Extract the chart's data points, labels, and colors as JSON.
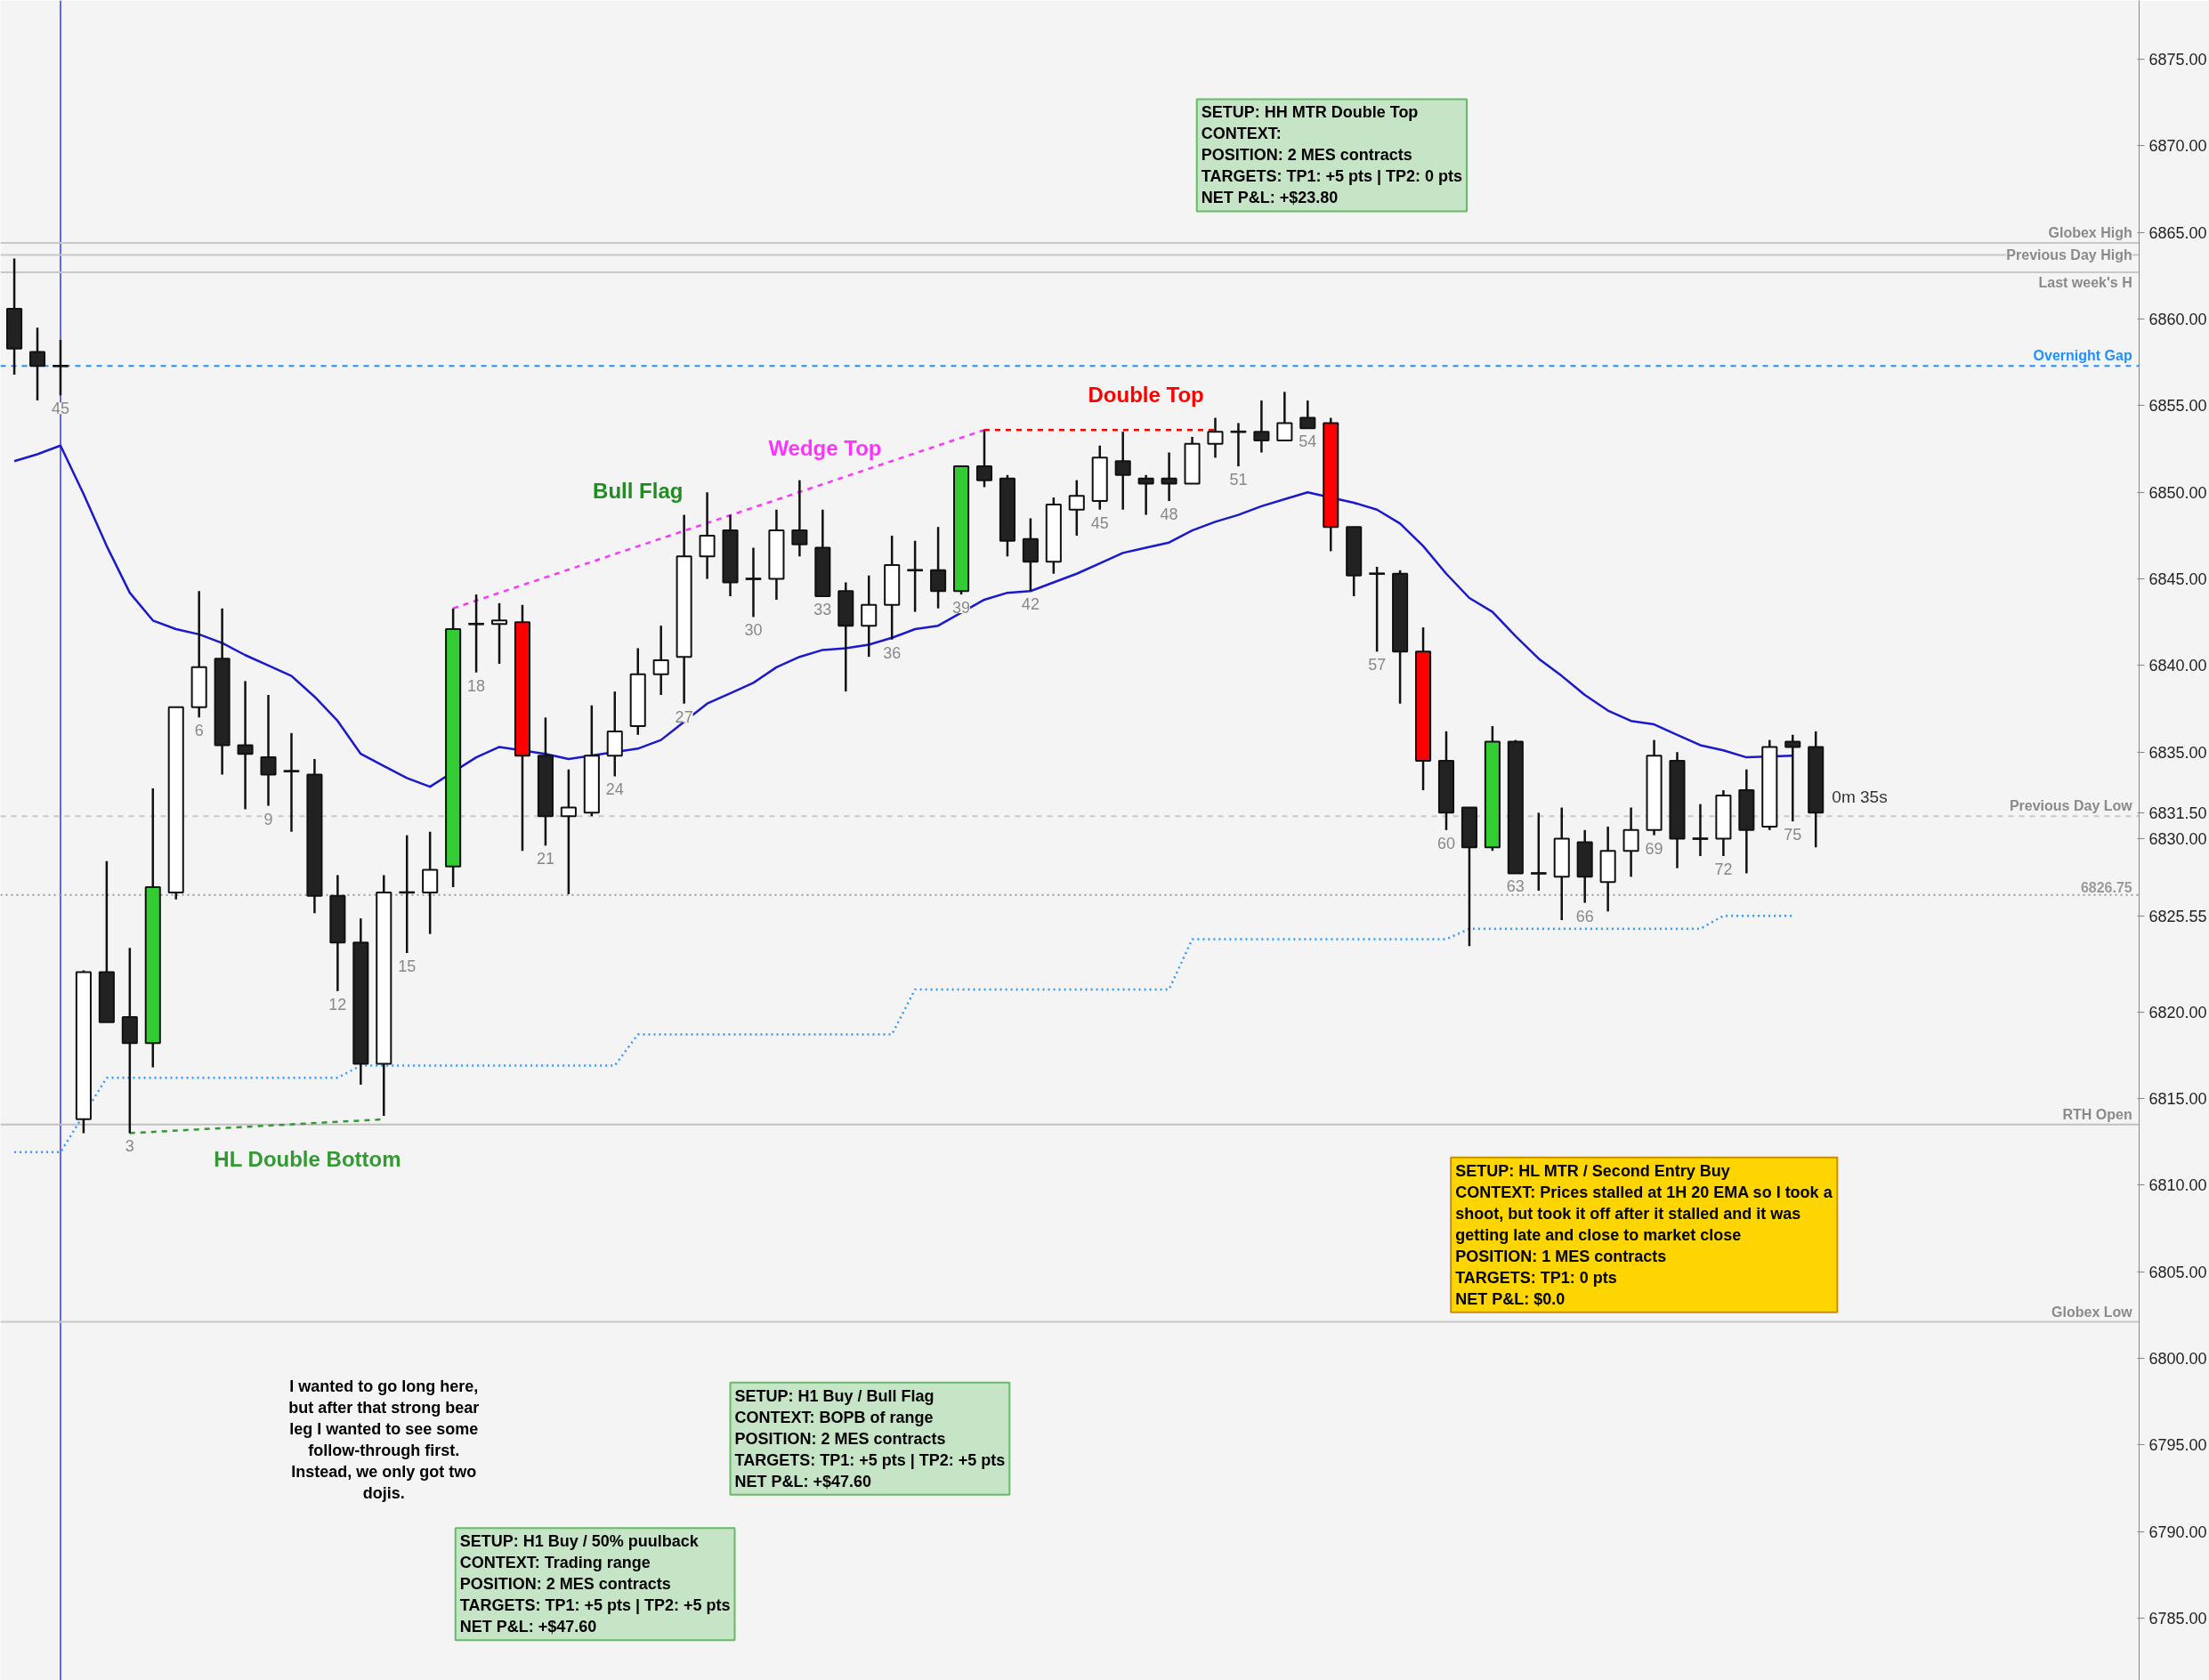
{
  "chart_data": {
    "type": "candlestick",
    "categories": [
      null,
      null,
      "45",
      null,
      null,
      "3",
      null,
      null,
      "6",
      null,
      null,
      "9",
      null,
      null,
      "12",
      null,
      null,
      "15",
      null,
      null,
      "18",
      null,
      null,
      "21",
      null,
      null,
      "24",
      null,
      null,
      "27",
      null,
      null,
      "30",
      null,
      null,
      "33",
      null,
      null,
      "36",
      null,
      null,
      "39",
      null,
      null,
      "42",
      null,
      null,
      "45",
      null,
      null,
      "48",
      null,
      null,
      "51",
      null,
      null,
      "54",
      null,
      null,
      "57",
      null,
      null,
      "60",
      null,
      null,
      "63",
      null,
      null,
      "66",
      null,
      null,
      "69",
      null,
      null,
      "72",
      null,
      null,
      "75",
      null
    ],
    "ohlc": [
      [
        6860.6,
        6863.5,
        6856.8,
        6858.3
      ],
      [
        6858.1,
        6859.5,
        6855.3,
        6857.3
      ],
      [
        6857.3,
        6858.8,
        6855.6,
        6857.3
      ],
      [
        6813.8,
        6822.4,
        6813.0,
        6822.3
      ],
      [
        6822.3,
        6828.7,
        6819.4,
        6819.4
      ],
      [
        6819.7,
        6823.7,
        6813.0,
        6818.2
      ],
      [
        6818.2,
        6832.9,
        6816.8,
        6827.2
      ],
      [
        6826.9,
        6837.6,
        6826.5,
        6837.6
      ],
      [
        6837.6,
        6844.3,
        6837.0,
        6839.9
      ],
      [
        6840.4,
        6843.3,
        6833.7,
        6835.4
      ],
      [
        6835.4,
        6839.1,
        6831.7,
        6834.9
      ],
      [
        6834.7,
        6838.3,
        6831.9,
        6833.7
      ],
      [
        6833.9,
        6836.1,
        6830.4,
        6833.9
      ],
      [
        6833.7,
        6834.6,
        6825.7,
        6826.7
      ],
      [
        6826.7,
        6827.9,
        6821.2,
        6824.0
      ],
      [
        6824.0,
        6825.4,
        6815.8,
        6817.0
      ],
      [
        6817.0,
        6827.9,
        6814.0,
        6826.9
      ],
      [
        6826.9,
        6830.2,
        6823.4,
        6826.9
      ],
      [
        6826.9,
        6830.4,
        6824.5,
        6828.2
      ],
      [
        6828.4,
        6843.3,
        6827.2,
        6842.1
      ],
      [
        6842.4,
        6844.1,
        6839.6,
        6842.4
      ],
      [
        6842.4,
        6843.6,
        6840.1,
        6842.6
      ],
      [
        6842.5,
        6843.5,
        6829.3,
        6834.8
      ],
      [
        6834.8,
        6837.0,
        6829.6,
        6831.3
      ],
      [
        6831.3,
        6834.0,
        6826.8,
        6831.8
      ],
      [
        6831.5,
        6837.7,
        6831.3,
        6834.8
      ],
      [
        6834.8,
        6838.5,
        6833.6,
        6836.2
      ],
      [
        6836.5,
        6841.0,
        6836.0,
        6839.5
      ],
      [
        6839.5,
        6842.3,
        6838.3,
        6840.3
      ],
      [
        6840.5,
        6848.7,
        6837.8,
        6846.3
      ],
      [
        6846.3,
        6850.0,
        6845.0,
        6847.5
      ],
      [
        6847.8,
        6848.7,
        6844.0,
        6844.8
      ],
      [
        6845.0,
        6846.8,
        6842.8,
        6845.0
      ],
      [
        6845.0,
        6849.0,
        6843.8,
        6847.8
      ],
      [
        6847.8,
        6850.7,
        6846.3,
        6847.0
      ],
      [
        6846.8,
        6849.0,
        6844.0,
        6844.0
      ],
      [
        6844.3,
        6844.8,
        6838.5,
        6842.3
      ],
      [
        6842.3,
        6845.2,
        6840.5,
        6843.5
      ],
      [
        6843.5,
        6847.5,
        6841.5,
        6845.8
      ],
      [
        6845.5,
        6847.2,
        6843.1,
        6845.5
      ],
      [
        6845.5,
        6848.0,
        6843.3,
        6844.3
      ],
      [
        6844.3,
        6851.5,
        6844.1,
        6851.5
      ],
      [
        6851.5,
        6853.6,
        6850.3,
        6850.7
      ],
      [
        6850.8,
        6851.0,
        6846.3,
        6847.2
      ],
      [
        6847.3,
        6848.5,
        6844.3,
        6846.0
      ],
      [
        6846.0,
        6849.7,
        6845.3,
        6849.3
      ],
      [
        6849.0,
        6850.7,
        6847.5,
        6849.8
      ],
      [
        6849.5,
        6852.7,
        6849.0,
        6852.0
      ],
      [
        6851.8,
        6853.5,
        6849.0,
        6851.0
      ],
      [
        6850.8,
        6851.0,
        6848.7,
        6850.5
      ],
      [
        6850.8,
        6852.3,
        6849.5,
        6850.5
      ],
      [
        6850.5,
        6853.2,
        6850.5,
        6852.8
      ],
      [
        6852.8,
        6854.3,
        6852.0,
        6853.5
      ],
      [
        6853.5,
        6854.0,
        6851.5,
        6853.5
      ],
      [
        6853.5,
        6855.3,
        6852.3,
        6853.0
      ],
      [
        6853.0,
        6855.8,
        6853.0,
        6854.0
      ],
      [
        6854.3,
        6855.3,
        6853.7,
        6853.7
      ],
      [
        6854.0,
        6854.3,
        6846.6,
        6848.0
      ],
      [
        6848.0,
        6848.0,
        6844.0,
        6845.2
      ],
      [
        6845.3,
        6845.7,
        6840.8,
        6845.3
      ],
      [
        6845.3,
        6845.5,
        6837.8,
        6840.8
      ],
      [
        6840.8,
        6842.2,
        6832.8,
        6834.5
      ],
      [
        6834.5,
        6836.2,
        6830.5,
        6831.5
      ],
      [
        6831.8,
        6831.8,
        6823.8,
        6829.5
      ],
      [
        6829.5,
        6836.5,
        6829.3,
        6835.6
      ],
      [
        6835.6,
        6835.7,
        6828.0,
        6828.0
      ],
      [
        6828.0,
        6831.5,
        6827.0,
        6828.0
      ],
      [
        6827.8,
        6831.8,
        6825.3,
        6830.0
      ],
      [
        6829.8,
        6830.5,
        6826.3,
        6827.8
      ],
      [
        6827.5,
        6830.7,
        6825.8,
        6829.3
      ],
      [
        6829.3,
        6831.8,
        6827.8,
        6830.5
      ],
      [
        6830.5,
        6835.7,
        6830.2,
        6834.8
      ],
      [
        6834.5,
        6835.0,
        6828.3,
        6830.0
      ],
      [
        6830.0,
        6832.0,
        6829.0,
        6830.0
      ],
      [
        6830.0,
        6832.8,
        6829.0,
        6832.5
      ],
      [
        6832.8,
        6834.0,
        6828.0,
        6830.5
      ],
      [
        6830.7,
        6835.7,
        6830.5,
        6835.3
      ],
      [
        6835.6,
        6836.0,
        6831.0,
        6835.3
      ],
      [
        6835.3,
        6836.2,
        6829.5,
        6831.5
      ]
    ],
    "colors": [
      "#222222",
      "#222222",
      "#111111",
      "#ffffff",
      "#222222",
      "#222222",
      "#33cc33",
      "#ffffff",
      "#ffffff",
      "#222222",
      "#222222",
      "#222222",
      "#111111",
      "#222222",
      "#222222",
      "#222222",
      "#ffffff",
      "#111111",
      "#ffffff",
      "#33cc33",
      "#111111",
      "#ffffff",
      "#ff0000",
      "#222222",
      "#ffffff",
      "#ffffff",
      "#ffffff",
      "#ffffff",
      "#ffffff",
      "#ffffff",
      "#ffffff",
      "#222222",
      "#111111",
      "#ffffff",
      "#222222",
      "#222222",
      "#222222",
      "#ffffff",
      "#ffffff",
      "#111111",
      "#222222",
      "#33cc33",
      "#222222",
      "#222222",
      "#222222",
      "#ffffff",
      "#ffffff",
      "#ffffff",
      "#222222",
      "#222222",
      "#222222",
      "#ffffff",
      "#ffffff",
      "#111111",
      "#222222",
      "#ffffff",
      "#222222",
      "#ff0000",
      "#222222",
      "#111111",
      "#222222",
      "#ff0000",
      "#222222",
      "#222222",
      "#33cc33",
      "#222222",
      "#111111",
      "#ffffff",
      "#222222",
      "#ffffff",
      "#ffffff",
      "#ffffff",
      "#222222",
      "#111111",
      "#ffffff",
      "#222222",
      "#ffffff",
      "#222222",
      "#222222"
    ],
    "series": [
      {
        "type": "line",
        "color": "#1a1acc",
        "line_style": "solid",
        "values": [
          6851.8,
          6852.2,
          6852.7,
          6849.9,
          6846.9,
          6844.2,
          6842.6,
          6842.1,
          6841.8,
          6841.3,
          6840.6,
          6840.0,
          6839.4,
          6838.2,
          6836.8,
          6834.9,
          6834.2,
          6833.5,
          6833.0,
          null,
          6834.7,
          6835.3,
          null,
          6834.9,
          6834.6,
          null,
          null,
          6835.2,
          6835.7,
          null,
          6837.8,
          6838.4,
          6839.0,
          6839.9,
          6840.5,
          6840.9,
          6841.0,
          6841.2,
          6841.6,
          6842.1,
          6842.3,
          null,
          6843.8,
          6844.2,
          6844.3,
          6844.8,
          6845.3,
          6845.9,
          6846.5,
          6846.8,
          6847.1,
          6847.8,
          6848.3,
          6848.7,
          6849.2,
          6849.6,
          6850.0,
          null,
          6849.4,
          6849.0,
          6848.2,
          6846.9,
          6845.3,
          6843.9,
          6843.1,
          6841.7,
          6840.4,
          6839.4,
          6838.3,
          6837.4,
          6836.8,
          6836.6,
          6836.0,
          6835.4,
          6835.1,
          6834.7,
          null,
          6834.8,
          null
        ]
      },
      {
        "type": "line",
        "color": "#3399ff",
        "line_style": "dotted",
        "values": [
          6811.9,
          6811.9,
          6811.9,
          null,
          6816.2,
          6816.2,
          6816.2,
          6816.2,
          6816.2,
          6816.2,
          6816.2,
          6816.2,
          6816.2,
          6816.2,
          6816.2,
          6816.9,
          6816.9,
          6816.9,
          6816.9,
          6816.9,
          6816.9,
          6816.9,
          6816.9,
          6816.9,
          6816.9,
          6816.9,
          6816.9,
          6818.7,
          6818.7,
          6818.7,
          6818.7,
          6818.7,
          6818.7,
          6818.7,
          6818.7,
          6818.7,
          6818.7,
          6818.7,
          6818.7,
          6821.3,
          6821.3,
          6821.3,
          6821.3,
          6821.3,
          6821.3,
          6821.3,
          6821.3,
          6821.3,
          6821.3,
          6821.3,
          6821.3,
          6824.2,
          6824.2,
          6824.2,
          6824.2,
          6824.2,
          6824.2,
          6824.2,
          6824.2,
          6824.2,
          6824.2,
          6824.2,
          6824.2,
          6824.8,
          6824.8,
          6824.8,
          6824.8,
          6824.8,
          6824.8,
          6824.8,
          6824.8,
          6824.8,
          6824.8,
          6824.8,
          6825.55,
          6825.55,
          6825.55,
          6825.55,
          null
        ]
      },
      {
        "type": "line",
        "name": "Wedge Top",
        "color": "#ff33ff",
        "line_style": "dashed",
        "values": [
          null,
          null,
          null,
          null,
          null,
          null,
          null,
          null,
          null,
          null,
          null,
          null,
          null,
          null,
          null,
          null,
          null,
          null,
          null,
          6843.3,
          null,
          null,
          null,
          null,
          null,
          null,
          null,
          null,
          null,
          null,
          null,
          null,
          null,
          null,
          null,
          null,
          null,
          null,
          null,
          null,
          null,
          null,
          6853.6,
          null,
          null,
          null,
          null,
          null,
          null,
          null,
          null,
          null,
          null,
          null,
          null,
          null,
          null,
          null,
          null,
          null,
          null,
          null,
          null,
          null,
          null,
          null,
          null,
          null,
          null,
          null,
          null,
          null,
          null,
          null,
          null,
          null,
          null,
          null,
          null
        ]
      },
      {
        "type": "line",
        "name": "Double Top",
        "color": "#ff0000",
        "line_style": "dashed",
        "values": [
          null,
          null,
          null,
          null,
          null,
          null,
          null,
          null,
          null,
          null,
          null,
          null,
          null,
          null,
          null,
          null,
          null,
          null,
          null,
          null,
          null,
          null,
          null,
          null,
          null,
          null,
          null,
          null,
          null,
          null,
          null,
          null,
          null,
          null,
          null,
          null,
          null,
          null,
          null,
          null,
          null,
          null,
          6853.6,
          null,
          null,
          null,
          null,
          null,
          null,
          null,
          null,
          null,
          6853.6,
          null,
          null,
          null,
          null,
          null,
          null,
          null,
          null,
          null,
          null,
          null,
          null,
          null,
          null,
          null,
          null,
          null,
          null,
          null,
          null,
          null,
          null,
          null,
          null,
          null,
          null
        ]
      },
      {
        "type": "line",
        "name": "HL Double Bottom",
        "color": "#339933",
        "line_style": "dashed",
        "values": [
          null,
          null,
          null,
          null,
          null,
          6813.0,
          null,
          null,
          null,
          null,
          null,
          null,
          null,
          null,
          null,
          null,
          6813.8,
          null,
          null,
          null,
          null,
          null,
          null,
          null,
          null,
          null,
          null,
          null,
          null,
          null,
          null,
          null,
          null,
          null,
          null,
          null,
          null,
          null,
          null,
          null,
          null,
          null,
          null,
          null,
          null,
          null,
          null,
          null,
          null,
          null,
          null,
          null,
          null,
          null,
          null,
          null,
          null,
          null,
          null,
          null,
          null,
          null,
          null,
          null,
          null,
          null,
          null,
          null,
          null,
          null,
          null,
          null,
          null,
          null,
          null,
          null,
          null,
          null,
          null
        ]
      }
    ],
    "ylim": [
      6781.4,
      6878.4
    ],
    "yticks": [
      {
        "value": 6785,
        "label": "6785.00"
      },
      {
        "value": 6790,
        "label": "6790.00"
      },
      {
        "value": 6795,
        "label": "6795.00"
      },
      {
        "value": 6800,
        "label": "6800.00"
      },
      {
        "value": 6805,
        "label": "6805.00"
      },
      {
        "value": 6810,
        "label": "6810.00"
      },
      {
        "value": 6815,
        "label": "6815.00"
      },
      {
        "value": 6820,
        "label": "6820.00"
      },
      {
        "value": 6825.55,
        "label": "6825.55"
      },
      {
        "value": 6830,
        "label": "6830.00"
      },
      {
        "value": 6831.5,
        "label": "6831.50"
      },
      {
        "value": 6835,
        "label": "6835.00"
      },
      {
        "value": 6840,
        "label": "6840.00"
      },
      {
        "value": 6845,
        "label": "6845.00"
      },
      {
        "value": 6850,
        "label": "6850.00"
      },
      {
        "value": 6855,
        "label": "6855.00"
      },
      {
        "value": 6860,
        "label": "6860.00"
      },
      {
        "value": 6865,
        "label": "6865.00"
      },
      {
        "value": 6870,
        "label": "6870.00"
      },
      {
        "value": 6875,
        "label": "6875.00"
      }
    ],
    "tick_labels": "y",
    "ref_lines": [
      {
        "axis": "x",
        "value": "45",
        "color": "#3333ff"
      },
      {
        "axis": "y",
        "value": 6864.4,
        "label": "Globex High",
        "color": "#c8c8c8"
      },
      {
        "axis": "y",
        "value": 6863.7,
        "label": "Previous Day High",
        "color": "#c8c8c8"
      },
      {
        "axis": "y",
        "value": 6862.7,
        "label": "Last week's H",
        "color": "#c8c8c8"
      },
      {
        "axis": "y",
        "value": 6857.3,
        "label": "Overnight Gap",
        "color": "#1e90ff",
        "line_style": "dashed"
      },
      {
        "axis": "y",
        "value": 6831.3,
        "label": "Previous Day Low",
        "color": "#c8c8c8",
        "line_style": "dashed"
      },
      {
        "axis": "y",
        "value": 6826.75,
        "label": "6826.75",
        "color": "#999999",
        "line_style": "dotted"
      },
      {
        "axis": "y",
        "value": 6813.5,
        "label": "RTH Open",
        "color": "#c0c0c0"
      },
      {
        "axis": "y",
        "value": 6802.1,
        "label": "Globex Low",
        "color": "#c8c8c8"
      }
    ],
    "annotations": [
      "Bull Flag",
      "0m 35s",
      "SETUP: HH MTR Double Top\nCONTEXT:\nPOSITION: 2 MES contracts\nTARGETS: TP1: +5 pts | TP2: 0 pts\nNET P&L: +$23.80",
      "I wanted to go long here,\nbut after that strong bear\nleg I wanted to see some\nfollow-through first.\nInstead, we only got two\ndojis.",
      "SETUP: H1 Buy / Bull Flag\nCONTEXT: BOPB of range\nPOSITION: 2 MES contracts\nTARGETS: TP1: +5 pts | TP2: +5 pts\nNET P&L: +$47.60",
      "SETUP: H1 Buy / 50% puulback\nCONTEXT: Trading range\nPOSITION: 2 MES contracts\nTARGETS: TP1: +5 pts | TP2: +5 pts\nNET P&L: +$47.60",
      "SETUP: HL MTR / Second Entry Buy\nCONTEXT: Prices stalled at 1H 20 EMA so I took a\nshoot, but took it off after it stalled and it was\ngetting late and close to market close\nPOSITION: 1 MES contracts\nTARGETS: TP1: 0 pts\nNET P&L: $0.0"
    ]
  }
}
